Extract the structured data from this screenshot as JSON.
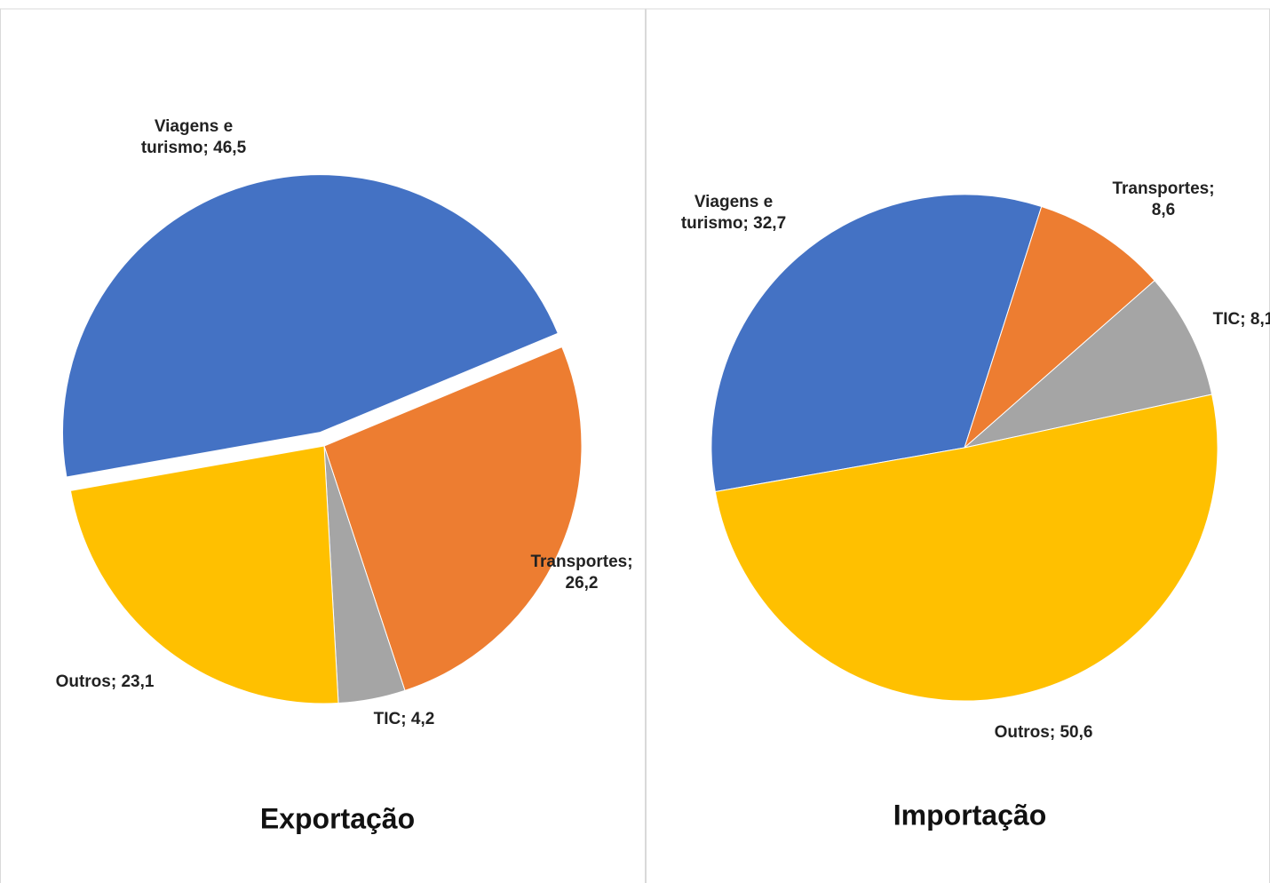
{
  "chart_data": [
    {
      "type": "pie",
      "title": "Exportação",
      "categories": [
        "Viagens e turismo",
        "Transportes",
        "TIC",
        "Outros"
      ],
      "values": [
        46.5,
        26.2,
        4.2,
        23.1
      ],
      "value_labels": [
        "46,5",
        "26,2",
        "4,2",
        "23,1"
      ],
      "label_separator": "; ",
      "colors": [
        "#4472c4",
        "#ed7d31",
        "#a5a5a5",
        "#ffc000"
      ],
      "exploded": [
        0
      ]
    },
    {
      "type": "pie",
      "title": "Importação",
      "categories": [
        "Viagens e turismo",
        "Transportes",
        "TIC",
        "Outros"
      ],
      "values": [
        32.7,
        8.6,
        8.1,
        50.6
      ],
      "value_labels": [
        "32,7",
        "8,6",
        "8,1",
        "50,6"
      ],
      "label_separator": "; ",
      "colors": [
        "#4472c4",
        "#ed7d31",
        "#a5a5a5",
        "#ffc000"
      ],
      "exploded": []
    }
  ]
}
